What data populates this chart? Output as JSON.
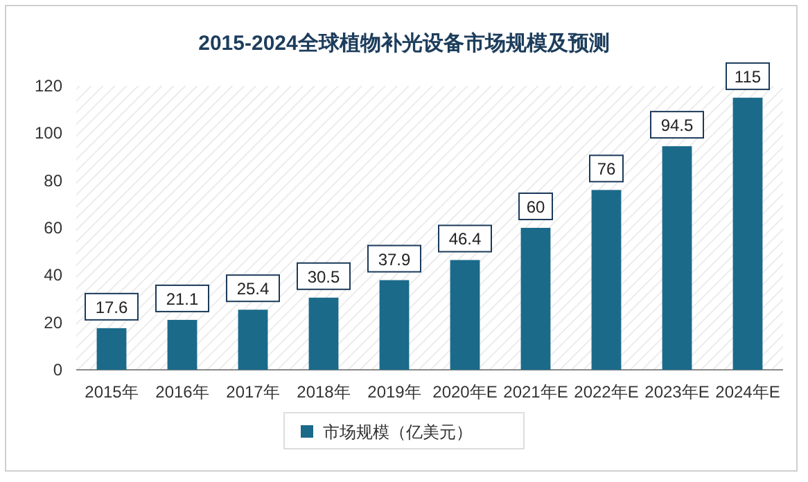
{
  "chart_data": {
    "type": "bar",
    "title": "2015-2024全球植物补光设备市场规模及预测",
    "categories": [
      "2015年",
      "2016年",
      "2017年",
      "2018年",
      "2019年",
      "2020年E",
      "2021年E",
      "2022年E",
      "2023年E",
      "2024年E"
    ],
    "series": [
      {
        "name": "市场规模（亿美元）",
        "color": "#1b6a8a",
        "values": [
          17.6,
          21.1,
          25.4,
          30.5,
          37.9,
          46.4,
          60,
          76,
          94.5,
          115
        ]
      }
    ],
    "ylim": [
      0,
      120
    ],
    "yticks": [
      0,
      20,
      40,
      60,
      80,
      100,
      120
    ],
    "data_labels": true,
    "legend": "bottom"
  }
}
